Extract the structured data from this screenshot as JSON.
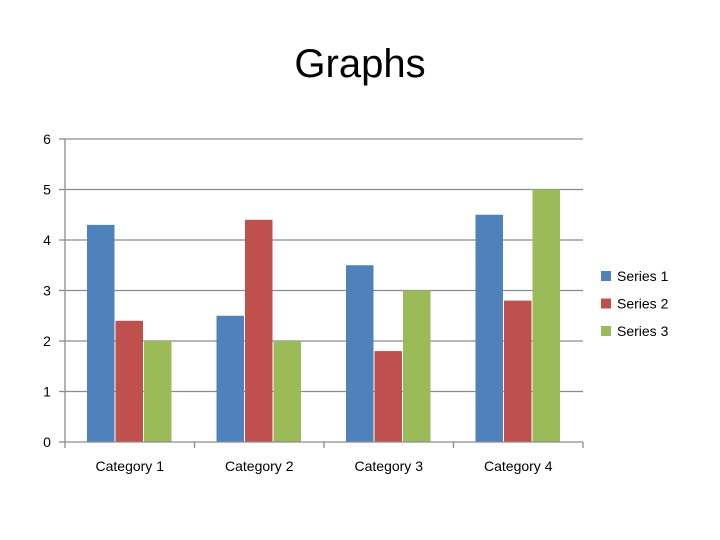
{
  "page": {
    "title": "Graphs"
  },
  "chart_data": {
    "type": "bar",
    "title": "Graphs",
    "xlabel": "",
    "ylabel": "",
    "categories": [
      "Category 1",
      "Category 2",
      "Category 3",
      "Category 4"
    ],
    "series": [
      {
        "name": "Series 1",
        "color": "#4F81BD",
        "values": [
          4.3,
          2.5,
          3.5,
          4.5
        ]
      },
      {
        "name": "Series 2",
        "color": "#C0504D",
        "values": [
          2.4,
          4.4,
          1.8,
          2.8
        ]
      },
      {
        "name": "Series 3",
        "color": "#9BBB59",
        "values": [
          2,
          2,
          3,
          5
        ]
      }
    ],
    "ylim": [
      0,
      6
    ],
    "yticks": [
      "0",
      "1",
      "2",
      "3",
      "4",
      "5",
      "6"
    ],
    "grid": true,
    "legend_position": "right"
  }
}
